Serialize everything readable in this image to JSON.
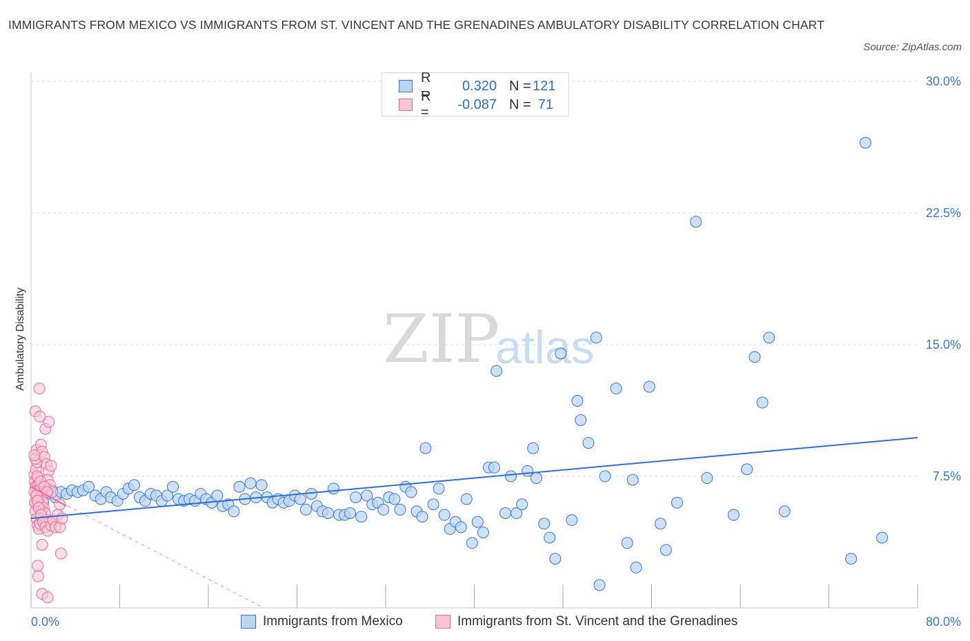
{
  "title": "IMMIGRANTS FROM MEXICO VS IMMIGRANTS FROM ST. VINCENT AND THE GRENADINES AMBULATORY DISABILITY CORRELATION CHART",
  "source": "Source: ZipAtlas.com",
  "watermark": {
    "zip": "ZIP",
    "atlas": "atlas"
  },
  "colors": {
    "blue": "#3a78d2",
    "blue_fill": "#bcd5f3",
    "pink": "#e86b96",
    "pink_fill": "#f6c6d6",
    "tick": "#3a78c9",
    "grid": "#dddddd"
  },
  "legend": {
    "r_label": "R =",
    "n_label": "N =",
    "blue": {
      "r": "0.320",
      "n": "121"
    },
    "pink": {
      "r": "-0.087",
      "n": "71"
    }
  },
  "chart_data": {
    "type": "scatter",
    "ylabel": "Ambulatory Disability",
    "xlim": [
      0,
      80
    ],
    "ylim": [
      0,
      30
    ],
    "x_tick_labels": [
      "0.0%",
      "80.0%"
    ],
    "y_ticks": [
      {
        "value": 7.5,
        "label": "7.5%"
      },
      {
        "value": 15,
        "label": "15.0%"
      },
      {
        "value": 22.5,
        "label": "22.5%"
      },
      {
        "value": 30,
        "label": "30.0%"
      }
    ],
    "grid": "horizontal dashed",
    "legend_position": "top-center",
    "series": [
      {
        "name": "Immigrants from Mexico",
        "color": "#3a78d2",
        "trend": {
          "x": [
            0,
            80
          ],
          "y": [
            5.1,
            9.7
          ]
        },
        "points": [
          [
            1.1,
            6.9
          ],
          [
            1.5,
            6.5
          ],
          [
            1.9,
            6.7
          ],
          [
            2.2,
            6.3
          ],
          [
            2.7,
            6.6
          ],
          [
            3.2,
            6.5
          ],
          [
            3.7,
            6.7
          ],
          [
            4.2,
            6.6
          ],
          [
            4.7,
            6.7
          ],
          [
            5.2,
            6.9
          ],
          [
            5.8,
            6.4
          ],
          [
            6.3,
            6.2
          ],
          [
            6.8,
            6.6
          ],
          [
            7.2,
            6.3
          ],
          [
            7.8,
            6.1
          ],
          [
            8.3,
            6.5
          ],
          [
            8.8,
            6.8
          ],
          [
            9.3,
            7.0
          ],
          [
            9.8,
            6.3
          ],
          [
            10.3,
            6.1
          ],
          [
            10.8,
            6.5
          ],
          [
            11.3,
            6.4
          ],
          [
            11.8,
            6.1
          ],
          [
            12.3,
            6.4
          ],
          [
            12.8,
            6.9
          ],
          [
            13.3,
            6.2
          ],
          [
            13.8,
            6.1
          ],
          [
            14.3,
            6.2
          ],
          [
            14.8,
            6.1
          ],
          [
            15.3,
            6.5
          ],
          [
            15.8,
            6.2
          ],
          [
            16.3,
            6.0
          ],
          [
            16.8,
            6.4
          ],
          [
            17.3,
            5.8
          ],
          [
            17.8,
            5.9
          ],
          [
            18.3,
            5.5
          ],
          [
            18.8,
            6.9
          ],
          [
            19.3,
            6.2
          ],
          [
            19.8,
            7.1
          ],
          [
            20.3,
            6.3
          ],
          [
            20.8,
            7.0
          ],
          [
            21.3,
            6.3
          ],
          [
            21.8,
            6.0
          ],
          [
            22.3,
            6.2
          ],
          [
            22.8,
            6.0
          ],
          [
            23.3,
            6.1
          ],
          [
            23.8,
            6.4
          ],
          [
            24.3,
            6.2
          ],
          [
            24.8,
            5.6
          ],
          [
            25.3,
            6.5
          ],
          [
            25.8,
            5.8
          ],
          [
            26.3,
            5.5
          ],
          [
            26.8,
            5.4
          ],
          [
            27.3,
            6.8
          ],
          [
            27.8,
            5.3
          ],
          [
            28.3,
            5.3
          ],
          [
            28.8,
            5.4
          ],
          [
            29.3,
            6.3
          ],
          [
            29.8,
            5.2
          ],
          [
            30.3,
            6.4
          ],
          [
            30.8,
            5.9
          ],
          [
            31.3,
            6.0
          ],
          [
            31.8,
            5.6
          ],
          [
            32.3,
            6.3
          ],
          [
            32.8,
            6.2
          ],
          [
            33.3,
            5.6
          ],
          [
            33.8,
            6.9
          ],
          [
            34.3,
            6.6
          ],
          [
            34.8,
            5.5
          ],
          [
            35.3,
            5.2
          ],
          [
            35.6,
            9.1
          ],
          [
            36.3,
            5.9
          ],
          [
            36.8,
            6.8
          ],
          [
            37.3,
            5.3
          ],
          [
            37.8,
            4.5
          ],
          [
            38.3,
            4.9
          ],
          [
            38.8,
            4.6
          ],
          [
            39.3,
            6.2
          ],
          [
            39.8,
            3.7
          ],
          [
            40.3,
            4.9
          ],
          [
            40.8,
            4.3
          ],
          [
            41.3,
            8.0
          ],
          [
            41.8,
            8.0
          ],
          [
            42.0,
            13.5
          ],
          [
            42.8,
            5.4
          ],
          [
            43.3,
            7.5
          ],
          [
            43.8,
            5.4
          ],
          [
            44.3,
            5.9
          ],
          [
            44.8,
            7.8
          ],
          [
            45.3,
            9.1
          ],
          [
            45.6,
            7.4
          ],
          [
            46.3,
            4.8
          ],
          [
            46.8,
            4.0
          ],
          [
            47.3,
            2.8
          ],
          [
            47.8,
            14.5
          ],
          [
            48.8,
            5.0
          ],
          [
            49.3,
            11.8
          ],
          [
            49.6,
            10.7
          ],
          [
            50.3,
            9.4
          ],
          [
            51.0,
            15.4
          ],
          [
            51.3,
            1.3
          ],
          [
            51.8,
            7.5
          ],
          [
            52.8,
            12.5
          ],
          [
            53.8,
            3.7
          ],
          [
            54.3,
            7.3
          ],
          [
            54.6,
            2.3
          ],
          [
            55.8,
            12.6
          ],
          [
            56.8,
            4.8
          ],
          [
            57.3,
            3.3
          ],
          [
            58.3,
            6.0
          ],
          [
            60.0,
            22.0
          ],
          [
            61.0,
            7.4
          ],
          [
            63.4,
            5.3
          ],
          [
            64.6,
            7.9
          ],
          [
            65.3,
            14.3
          ],
          [
            66.0,
            11.7
          ],
          [
            66.6,
            15.4
          ],
          [
            68.0,
            5.5
          ],
          [
            74.0,
            2.8
          ],
          [
            75.3,
            26.5
          ],
          [
            76.8,
            4.0
          ]
        ]
      },
      {
        "name": "Immigrants from St. Vincent and the Grenadines",
        "color": "#e86b96",
        "trend": {
          "x": [
            0,
            3.2
          ],
          "y": [
            6.9,
            5.8
          ]
        },
        "trend_extended": {
          "x": [
            0,
            21
          ],
          "y": [
            6.9,
            0.0
          ]
        },
        "points": [
          [
            0.3,
            7.6
          ],
          [
            0.35,
            7.2
          ],
          [
            0.4,
            6.9
          ],
          [
            0.45,
            6.5
          ],
          [
            0.5,
            6.2
          ],
          [
            0.55,
            5.8
          ],
          [
            0.6,
            7.0
          ],
          [
            0.65,
            6.7
          ],
          [
            0.7,
            6.3
          ],
          [
            0.75,
            5.9
          ],
          [
            0.3,
            6.6
          ],
          [
            0.35,
            6.0
          ],
          [
            0.4,
            5.5
          ],
          [
            0.5,
            5.1
          ],
          [
            0.6,
            4.7
          ],
          [
            0.7,
            4.5
          ],
          [
            0.8,
            4.8
          ],
          [
            0.9,
            5.2
          ],
          [
            1.0,
            5.6
          ],
          [
            1.1,
            6.0
          ],
          [
            0.45,
            7.9
          ],
          [
            0.55,
            8.3
          ],
          [
            0.65,
            7.4
          ],
          [
            0.75,
            7.1
          ],
          [
            0.85,
            6.8
          ],
          [
            0.95,
            6.4
          ],
          [
            1.05,
            6.1
          ],
          [
            1.15,
            5.7
          ],
          [
            1.25,
            5.4
          ],
          [
            1.35,
            5.0
          ],
          [
            0.4,
            8.5
          ],
          [
            0.5,
            9.0
          ],
          [
            0.9,
            9.3
          ],
          [
            1.0,
            8.9
          ],
          [
            1.2,
            8.6
          ],
          [
            1.4,
            8.2
          ],
          [
            1.6,
            7.8
          ],
          [
            1.8,
            8.1
          ],
          [
            1.3,
            10.2
          ],
          [
            1.6,
            10.6
          ],
          [
            0.75,
            12.5
          ],
          [
            0.4,
            11.2
          ],
          [
            0.8,
            10.9
          ],
          [
            0.3,
            8.7
          ],
          [
            1.5,
            7.3
          ],
          [
            1.7,
            7.0
          ],
          [
            1.9,
            6.6
          ],
          [
            0.5,
            6.4
          ],
          [
            0.6,
            6.1
          ],
          [
            0.7,
            5.7
          ],
          [
            0.9,
            5.3
          ],
          [
            1.1,
            4.9
          ],
          [
            1.3,
            4.6
          ],
          [
            1.5,
            4.4
          ],
          [
            1.8,
            4.7
          ],
          [
            2.0,
            5.0
          ],
          [
            2.2,
            4.6
          ],
          [
            2.4,
            5.3
          ],
          [
            2.6,
            5.9
          ],
          [
            1.0,
            3.6
          ],
          [
            2.6,
            4.6
          ],
          [
            2.8,
            5.1
          ],
          [
            2.7,
            3.1
          ],
          [
            0.6,
            2.4
          ],
          [
            0.65,
            1.8
          ],
          [
            1.0,
            0.8
          ],
          [
            1.5,
            0.6
          ],
          [
            0.55,
            7.5
          ],
          [
            0.85,
            7.2
          ],
          [
            1.2,
            6.9
          ],
          [
            1.45,
            6.6
          ]
        ]
      }
    ]
  },
  "bottom_legend": {
    "blue_label": "Immigrants from Mexico",
    "pink_label": "Immigrants from St. Vincent and the Grenadines"
  }
}
